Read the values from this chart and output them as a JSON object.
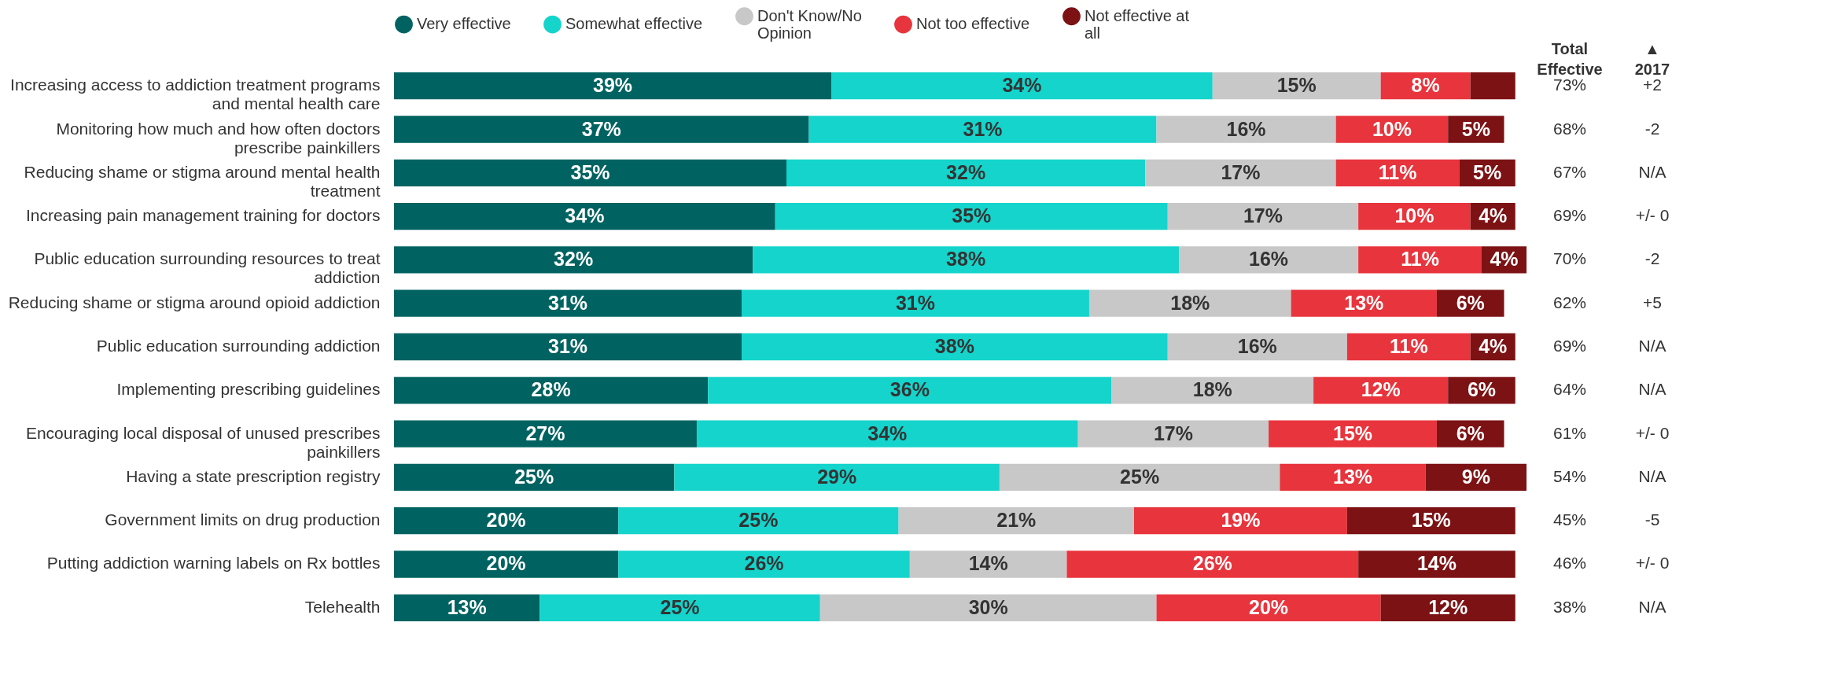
{
  "chart_data": {
    "type": "bar",
    "orientation": "horizontal",
    "stacked": true,
    "legend": "top",
    "tick_labels": "y",
    "xlim": [
      0,
      101
    ],
    "categories": [
      "Increasing access to addiction treatment programs\nand mental health care",
      "Monitoring how much and how often doctors\nprescribe painkillers",
      "Reducing shame or stigma around mental health\ntreatment",
      "Increasing pain management training for doctors",
      "Public education surrounding resources to treat\naddiction",
      "Reducing shame or stigma around opioid addiction",
      "Public education surrounding addiction",
      "Implementing prescribing guidelines",
      "Encouraging local disposal of unused prescribes\npainkillers",
      "Having a state prescription registry",
      "Government limits on drug production",
      "Putting addiction warning labels on Rx bottles",
      "Telehealth"
    ],
    "series": [
      {
        "name": "Very effective",
        "color": "#006361",
        "values": [
          39,
          37,
          35,
          34,
          32,
          31,
          31,
          28,
          27,
          25,
          20,
          20,
          13
        ],
        "value_labels": [
          "39%",
          "37%",
          "35%",
          "34%",
          "32%",
          "31%",
          "31%",
          "28%",
          "27%",
          "25%",
          "20%",
          "20%",
          "13%"
        ]
      },
      {
        "name": "Somewhat effective",
        "color": "#14d4cc",
        "values": [
          34,
          31,
          32,
          35,
          38,
          31,
          38,
          36,
          34,
          29,
          25,
          26,
          25
        ],
        "value_labels": [
          "34%",
          "31%",
          "32%",
          "35%",
          "38%",
          "31%",
          "38%",
          "36%",
          "34%",
          "29%",
          "25%",
          "26%",
          "25%"
        ]
      },
      {
        "name": "Don't Know/No\nOpinion",
        "color": "#c8c8c8",
        "values": [
          15,
          16,
          17,
          17,
          16,
          18,
          16,
          18,
          17,
          25,
          21,
          14,
          30
        ],
        "value_labels": [
          "15%",
          "16%",
          "17%",
          "17%",
          "16%",
          "18%",
          "16%",
          "18%",
          "17%",
          "25%",
          "21%",
          "14%",
          "30%"
        ]
      },
      {
        "name": "Not too effective",
        "color": "#e8343c",
        "values": [
          8,
          10,
          11,
          10,
          11,
          13,
          11,
          12,
          15,
          13,
          19,
          26,
          20
        ],
        "value_labels": [
          "8%",
          "10%",
          "11%",
          "10%",
          "11%",
          "13%",
          "11%",
          "12%",
          "15%",
          "13%",
          "19%",
          "26%",
          "20%"
        ]
      },
      {
        "name": "Not effective at\nall",
        "color": "#7c1214",
        "values": [
          4,
          5,
          5,
          4,
          4,
          6,
          4,
          6,
          6,
          9,
          15,
          14,
          12
        ],
        "value_labels": [
          null,
          "5%",
          "5%",
          "4%",
          "4%",
          "6%",
          "4%",
          "6%",
          "6%",
          "9%",
          "15%",
          "14%",
          "12%"
        ]
      }
    ],
    "annotations": [
      "Total Effective",
      "73%",
      "68%",
      "67%",
      "69%",
      "70%",
      "62%",
      "69%",
      "64%",
      "61%",
      "54%",
      "45%",
      "46%",
      "38%",
      "▲ 2017",
      "+2",
      "-2",
      "N/A",
      "+/- 0",
      "-2",
      "+5",
      "N/A",
      "N/A",
      "+/- 0",
      "N/A",
      "-5",
      "+/- 0",
      "N/A"
    ]
  }
}
